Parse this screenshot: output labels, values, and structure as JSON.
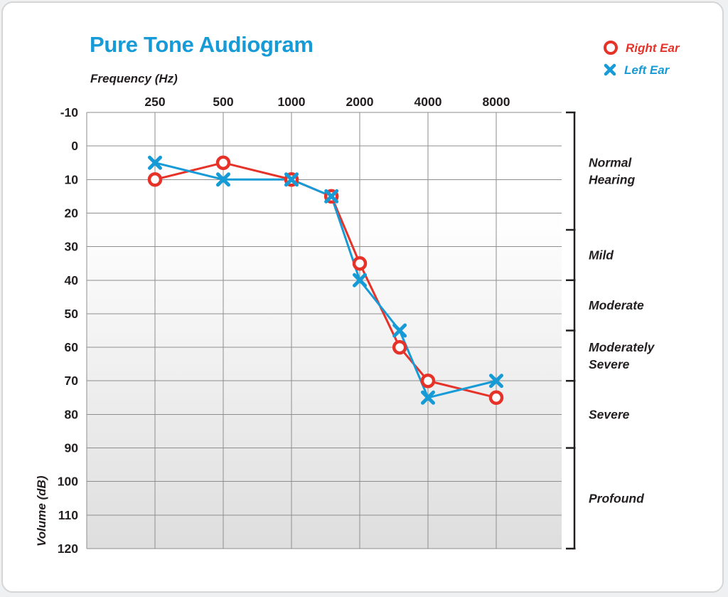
{
  "title": "Pure Tone Audiogram",
  "legend": {
    "right_ear_label": "Right Ear",
    "left_ear_label": "Left Ear"
  },
  "axes": {
    "x_title": "Frequency (Hz)",
    "y_title": "Volume (dB)"
  },
  "colors": {
    "title_blue": "#169BD7",
    "right_ear_red": "#E6332A",
    "left_ear_blue": "#169BD7",
    "text_dark": "#231F20",
    "grid_gray": "#8E8E8E"
  },
  "chart_data": {
    "type": "line",
    "title": "Pure Tone Audiogram",
    "xlabel": "Frequency (Hz)",
    "ylabel": "Volume (dB)",
    "x_scale": "log2",
    "x_ticks": [
      250,
      500,
      1000,
      2000,
      4000,
      8000
    ],
    "y_ticks": [
      -10,
      0,
      10,
      20,
      30,
      40,
      50,
      60,
      70,
      80,
      90,
      100,
      110,
      120
    ],
    "ylim": [
      -10,
      120
    ],
    "grid": true,
    "legend_position": "top-right",
    "series": [
      {
        "name": "Right Ear",
        "marker": "circle",
        "color": "#E6332A",
        "x": [
          250,
          500,
          1000,
          1500,
          2000,
          3000,
          4000,
          8000
        ],
        "y": [
          10,
          5,
          10,
          15,
          35,
          60,
          70,
          75
        ]
      },
      {
        "name": "Left Ear",
        "marker": "x",
        "color": "#169BD7",
        "x": [
          250,
          500,
          1000,
          1500,
          2000,
          3000,
          4000,
          8000
        ],
        "y": [
          5,
          10,
          10,
          15,
          40,
          55,
          75,
          70
        ]
      }
    ],
    "severity_bands": [
      {
        "label": "Normal Hearing",
        "lines": [
          "Normal",
          "Hearing"
        ],
        "from": -10,
        "to": 25
      },
      {
        "label": "Mild",
        "lines": [
          "Mild"
        ],
        "from": 25,
        "to": 40
      },
      {
        "label": "Moderate",
        "lines": [
          "Moderate"
        ],
        "from": 40,
        "to": 55
      },
      {
        "label": "Moderately Severe",
        "lines": [
          "Moderately",
          "Severe"
        ],
        "from": 55,
        "to": 70
      },
      {
        "label": "Severe",
        "lines": [
          "Severe"
        ],
        "from": 70,
        "to": 90
      },
      {
        "label": "Profound",
        "lines": [
          "Profound"
        ],
        "from": 90,
        "to": 120
      }
    ]
  }
}
